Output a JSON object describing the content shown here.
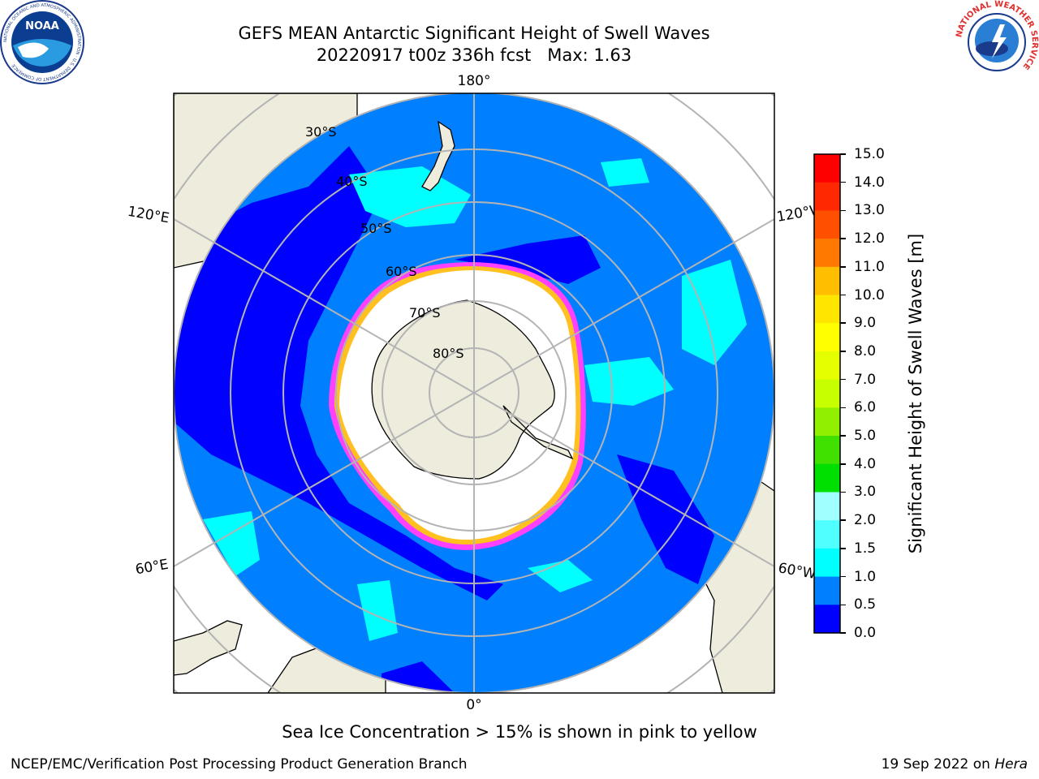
{
  "header": {
    "title_line1": "GEFS MEAN Antarctic Significant Height of Swell Waves",
    "title_line2": "20220917 t00z 336h fcst   Max: 1.63"
  },
  "map": {
    "projection": "south-polar-stereographic",
    "longitude_labels": {
      "top": "180°",
      "bottom": "0°",
      "left_upper": "120°E",
      "left_lower": "60°E",
      "right_upper": "120°W",
      "right_lower": "60°W"
    },
    "latitude_labels": [
      "30°S",
      "40°S",
      "50°S",
      "60°S",
      "70°S",
      "80°S"
    ],
    "legend_note": "Sea Ice Concentration > 15% is shown in pink to yellow",
    "colors": {
      "land": "#eeecdc",
      "ocean_main": "#0080ff",
      "ocean_low": "#0000ff",
      "swell_high": "#00ffff",
      "sea_ice_edge": "#ff40ff",
      "sea_ice_inner": "#ffc020",
      "graticule": "#b4b4b4"
    }
  },
  "colorbar": {
    "label": "Significant Height of Swell Waves [m]",
    "ticks": [
      "15.0",
      "14.0",
      "13.0",
      "12.0",
      "11.0",
      "10.0",
      "9.0",
      "8.0",
      "7.0",
      "6.0",
      "5.0",
      "4.0",
      "3.0",
      "2.0",
      "1.5",
      "1.0",
      "0.5",
      "0.0"
    ],
    "colors_top_to_bottom": [
      "#ff0000",
      "#ff2800",
      "#ff5000",
      "#ff7800",
      "#ff9b00",
      "#ffbe00",
      "#ffe600",
      "#ffff00",
      "#e6ff00",
      "#c8ff00",
      "#90f000",
      "#40e000",
      "#00e000",
      "#50ff80",
      "#a0ffff",
      "#50ffff",
      "#00ffff",
      "#0080ff",
      "#0000ff"
    ]
  },
  "footer": {
    "left": "NCEP/EMC/Verification Post Processing Product Generation Branch",
    "right_prefix": "19 Sep 2022 on ",
    "right_machine": "Hera"
  },
  "logos": {
    "left": {
      "name": "NOAA",
      "ring_text": "NATIONAL OCEANIC AND ATMOSPHERIC ADMINISTRATION · U.S. DEPARTMENT OF COMMERCE"
    },
    "right": {
      "name": "NATIONAL WEATHER SERVICE"
    }
  }
}
